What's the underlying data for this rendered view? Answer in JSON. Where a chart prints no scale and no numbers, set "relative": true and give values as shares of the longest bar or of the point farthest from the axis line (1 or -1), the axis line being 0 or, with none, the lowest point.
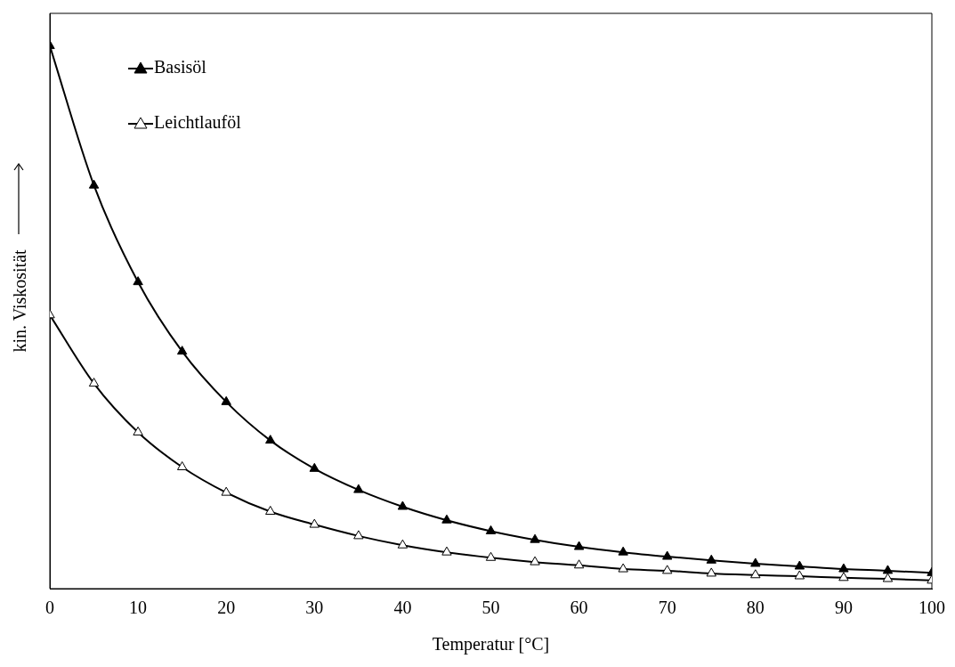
{
  "chart_data": {
    "type": "line",
    "xlabel": "Temperatur [°C]",
    "ylabel": "kin. Viskosität",
    "relative": true,
    "x": [
      0,
      5,
      10,
      15,
      20,
      25,
      30,
      35,
      40,
      45,
      50,
      55,
      60,
      65,
      70,
      75,
      80,
      85,
      90,
      95,
      100
    ],
    "xlim": [
      0,
      100
    ],
    "xticks": [
      0,
      10,
      20,
      30,
      40,
      50,
      60,
      70,
      80,
      90,
      100
    ],
    "marker": "triangle",
    "line_style": "solid",
    "legend": "top left",
    "grid": false,
    "series": [
      {
        "name": "Basisöl",
        "color": "#000000",
        "values": [
          1,
          0.743,
          0.565,
          0.437,
          0.344,
          0.273,
          0.221,
          0.182,
          0.151,
          0.126,
          0.106,
          0.09,
          0.077,
          0.067,
          0.059,
          0.052,
          0.046,
          0.041,
          0.036,
          0.033,
          0.029
        ]
      },
      {
        "name": "Leichtlauföl",
        "color": "#000000",
        "values": [
          0.504,
          0.378,
          0.288,
          0.224,
          0.177,
          0.142,
          0.118,
          0.097,
          0.08,
          0.067,
          0.057,
          0.049,
          0.043,
          0.036,
          0.033,
          0.028,
          0.025,
          0.023,
          0.02,
          0.018,
          0.015
        ]
      }
    ]
  }
}
